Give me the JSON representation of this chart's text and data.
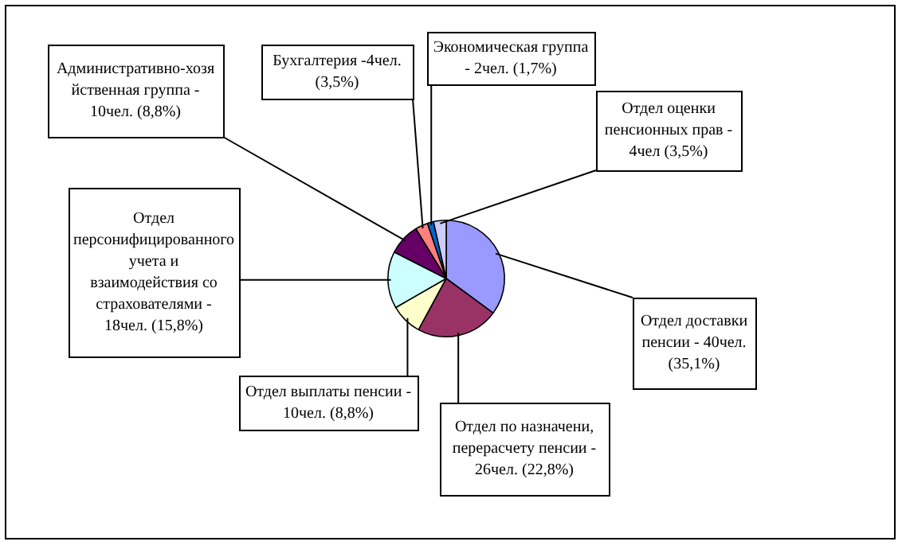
{
  "chart_data": {
    "type": "pie",
    "categories": [
      "Отдел доставки пенсии - 40чел. (35,1%)",
      "Отдел по назначени, перерасчету пенсии - 26чел. (22,8%)",
      "Отдел выплаты пенсии - 10чел. (8,8%)",
      "Отдел персонифицированного учета и взаимодействия со страхователями - 18чел. (15,8%)",
      "Административно-хозяйственная группа - 10чел. (8,8%)",
      "Бухгалтерия -4чел. (3,5%)",
      "Экономическая группа - 2чел. (1,7%)",
      "Отдел оценки пенсионных прав - 4чел (3,5%)"
    ],
    "values": [
      35.1,
      22.8,
      8.8,
      15.8,
      8.8,
      3.5,
      1.7,
      3.5
    ],
    "colors": [
      "#9999ff",
      "#993366",
      "#ffffcc",
      "#ccffff",
      "#660066",
      "#ff8080",
      "#0066cc",
      "#ccccff"
    ],
    "legend": false
  }
}
